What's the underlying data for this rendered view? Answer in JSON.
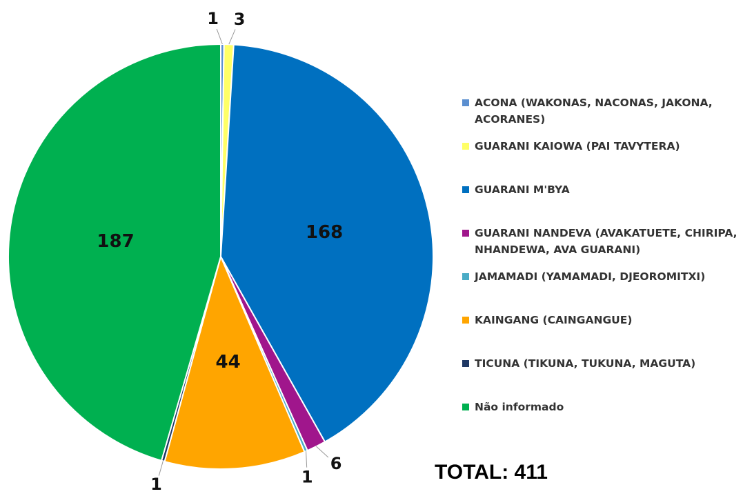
{
  "chart_data": {
    "type": "pie",
    "categories": [
      "ACONA (WAKONAS, NACONAS, JAKONA, ACORANES)",
      "GUARANI KAIOWA (PAI TAVYTERA)",
      "GUARANI M'BYA",
      "GUARANI NANDEVA (AVAKATUETE, CHIRIPA, NHANDEWA, AVA GUARANI)",
      "JAMAMADI (YAMAMADI, DJEOROMITXI)",
      "KAINGANG (CAINGANGUE)",
      "TICUNA (TIKUNA, TUKUNA, MAGUTA)",
      "Não informado"
    ],
    "values": [
      1,
      3,
      168,
      6,
      1,
      44,
      1,
      187
    ],
    "colors": [
      "#5b8fd0",
      "#ffff66",
      "#0070c0",
      "#a0168c",
      "#4bacc6",
      "#ffa500",
      "#1f3864",
      "#00b050"
    ],
    "legend": "right",
    "total_label": "TOTAL: 411"
  }
}
